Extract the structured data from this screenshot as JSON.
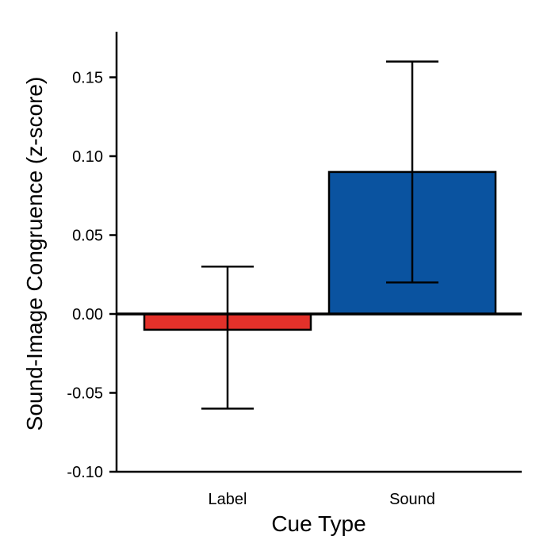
{
  "chart_data": {
    "type": "bar",
    "title": "",
    "xlabel": "Cue Type",
    "ylabel": "Sound-Image Congruence (z-score)",
    "ylim": [
      -0.1,
      0.18
    ],
    "yticks": [
      "-0.10",
      "-0.05",
      "0.00",
      "0.05",
      "0.10",
      "0.15"
    ],
    "categories": [
      "Label",
      "Sound"
    ],
    "values": [
      -0.01,
      0.09
    ],
    "error_low": [
      -0.06,
      0.02
    ],
    "error_high": [
      0.03,
      0.16
    ],
    "colors": [
      "#e3312a",
      "#0a53a0"
    ],
    "grid": false,
    "legend": "none"
  }
}
